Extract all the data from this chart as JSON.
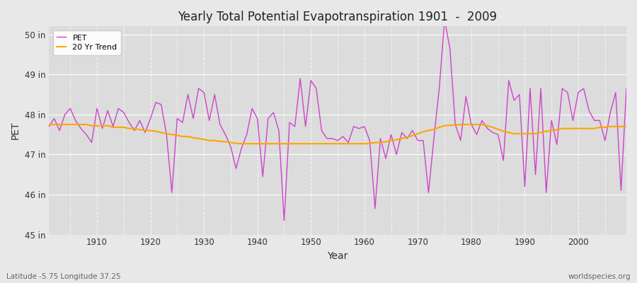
{
  "title": "Yearly Total Potential Evapotranspiration 1901  -  2009",
  "ylabel": "PET",
  "xlabel": "Year",
  "subtitle_left": "Latitude -5.75 Longitude 37.25",
  "subtitle_right": "worldspecies.org",
  "pet_color": "#CC44CC",
  "trend_color": "#FFA500",
  "bg_color": "#E8E8E8",
  "plot_bg_color": "#DCDCDC",
  "ylim": [
    45,
    50.2
  ],
  "yticks": [
    45,
    46,
    47,
    48,
    49,
    50
  ],
  "ytick_labels": [
    "45 in",
    "46 in",
    "47 in",
    "48 in",
    "49 in",
    "50 in"
  ],
  "years": [
    1901,
    1902,
    1903,
    1904,
    1905,
    1906,
    1907,
    1908,
    1909,
    1910,
    1911,
    1912,
    1913,
    1914,
    1915,
    1916,
    1917,
    1918,
    1919,
    1920,
    1921,
    1922,
    1923,
    1924,
    1925,
    1926,
    1927,
    1928,
    1929,
    1930,
    1931,
    1932,
    1933,
    1934,
    1935,
    1936,
    1937,
    1938,
    1939,
    1940,
    1941,
    1942,
    1943,
    1944,
    1945,
    1946,
    1947,
    1948,
    1949,
    1950,
    1951,
    1952,
    1953,
    1954,
    1955,
    1956,
    1957,
    1958,
    1959,
    1960,
    1961,
    1962,
    1963,
    1964,
    1965,
    1966,
    1967,
    1968,
    1969,
    1970,
    1971,
    1972,
    1973,
    1974,
    1975,
    1976,
    1977,
    1978,
    1979,
    1980,
    1981,
    1982,
    1983,
    1984,
    1985,
    1986,
    1987,
    1988,
    1989,
    1990,
    1991,
    1992,
    1993,
    1994,
    1995,
    1996,
    1997,
    1998,
    1999,
    2000,
    2001,
    2002,
    2003,
    2004,
    2005,
    2006,
    2007,
    2008,
    2009
  ],
  "pet_values": [
    47.7,
    47.9,
    47.6,
    48.0,
    48.15,
    47.85,
    47.65,
    47.5,
    47.3,
    48.15,
    47.65,
    48.1,
    47.7,
    48.15,
    48.05,
    47.8,
    47.6,
    47.85,
    47.55,
    47.9,
    48.3,
    48.25,
    47.5,
    46.05,
    47.9,
    47.8,
    48.5,
    47.9,
    48.65,
    48.55,
    47.85,
    48.5,
    47.75,
    47.5,
    47.2,
    46.65,
    47.15,
    47.5,
    48.15,
    47.9,
    46.45,
    47.9,
    48.05,
    47.6,
    45.35,
    47.8,
    47.7,
    48.9,
    47.7,
    48.85,
    48.65,
    47.6,
    47.4,
    47.4,
    47.35,
    47.45,
    47.3,
    47.7,
    47.65,
    47.7,
    47.35,
    45.65,
    47.4,
    46.9,
    47.5,
    47.0,
    47.55,
    47.4,
    47.6,
    47.35,
    47.35,
    46.05,
    47.4,
    48.65,
    50.35,
    49.65,
    47.75,
    47.35,
    48.45,
    47.75,
    47.5,
    47.85,
    47.65,
    47.55,
    47.5,
    46.85,
    48.85,
    48.35,
    48.5,
    46.2,
    48.65,
    46.5,
    48.65,
    46.05,
    47.85,
    47.25,
    48.65,
    48.55,
    47.85,
    48.55,
    48.65,
    48.1,
    47.85,
    47.85,
    47.35,
    48.05,
    48.55,
    46.1,
    48.65
  ],
  "trend_values": [
    47.75,
    47.75,
    47.75,
    47.75,
    47.75,
    47.75,
    47.75,
    47.75,
    47.72,
    47.72,
    47.72,
    47.72,
    47.68,
    47.68,
    47.68,
    47.65,
    47.65,
    47.62,
    47.6,
    47.6,
    47.58,
    47.55,
    47.52,
    47.5,
    47.48,
    47.45,
    47.45,
    47.42,
    47.4,
    47.38,
    47.35,
    47.35,
    47.33,
    47.32,
    47.3,
    47.28,
    47.27,
    47.27,
    47.27,
    47.27,
    47.27,
    47.27,
    47.27,
    47.27,
    47.27,
    47.27,
    47.27,
    47.27,
    47.27,
    47.27,
    47.27,
    47.27,
    47.27,
    47.27,
    47.27,
    47.27,
    47.27,
    47.27,
    47.27,
    47.27,
    47.28,
    47.3,
    47.3,
    47.32,
    47.35,
    47.37,
    47.4,
    47.43,
    47.47,
    47.52,
    47.57,
    47.6,
    47.63,
    47.68,
    47.72,
    47.73,
    47.74,
    47.75,
    47.75,
    47.75,
    47.75,
    47.75,
    47.72,
    47.68,
    47.63,
    47.58,
    47.55,
    47.52,
    47.52,
    47.52,
    47.52,
    47.52,
    47.55,
    47.58,
    47.6,
    47.62,
    47.65,
    47.65,
    47.65,
    47.65,
    47.65,
    47.65,
    47.65,
    47.68,
    47.68,
    47.7,
    47.7,
    47.7,
    47.7
  ]
}
